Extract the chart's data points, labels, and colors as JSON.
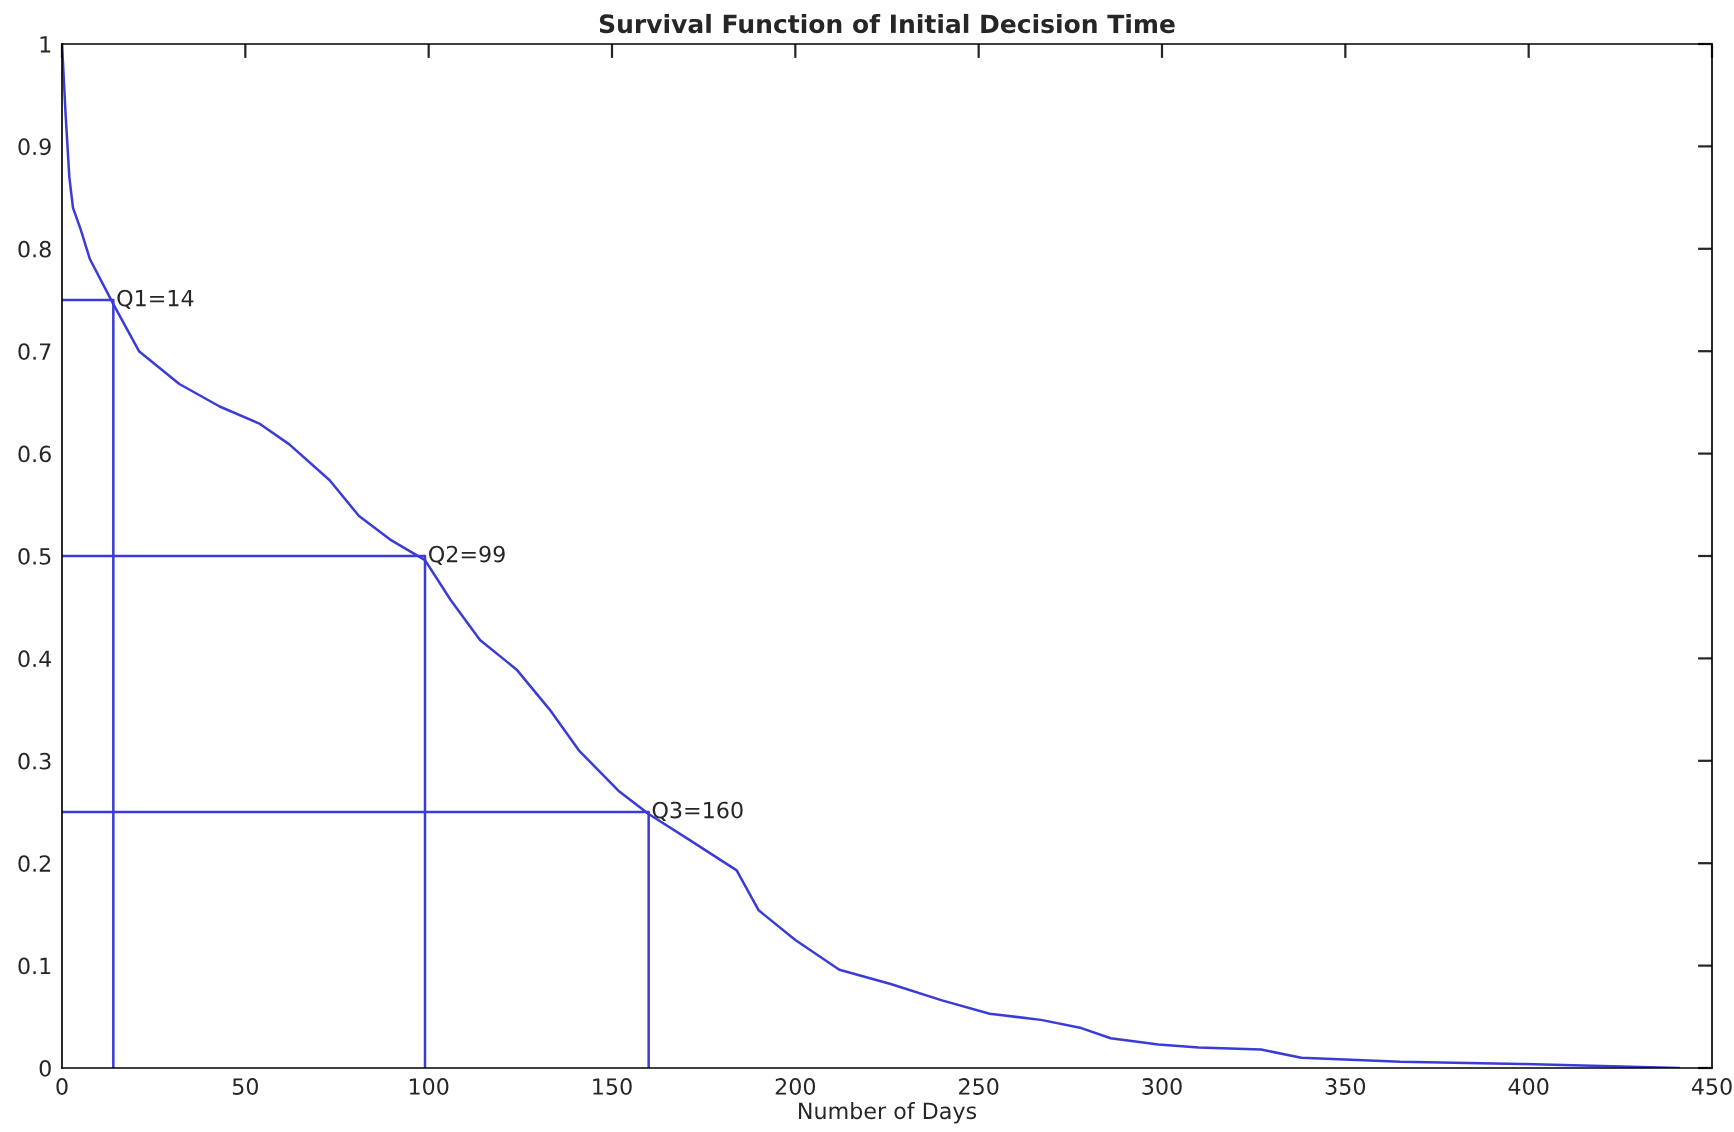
{
  "chart_data": {
    "type": "line",
    "title": "Survival Function of Initial Decision Time",
    "xlabel": "Number of Days",
    "xlim": [
      0,
      450
    ],
    "xticks": [
      0,
      50,
      100,
      150,
      200,
      250,
      300,
      350,
      400,
      450
    ],
    "ylim": [
      0,
      1
    ],
    "yticks": [
      0,
      0.1,
      0.2,
      0.3,
      0.4,
      0.5,
      0.6,
      0.7,
      0.8,
      0.9,
      1
    ],
    "grid": false,
    "marker": "none",
    "line_style": "solid",
    "series": [
      {
        "color": "#3b3bd8",
        "x": [
          0,
          1,
          2,
          3,
          5,
          7.6,
          14,
          21,
          32,
          43,
          54,
          62,
          73,
          81,
          89.5,
          99,
          106,
          114,
          124,
          133,
          141,
          152,
          160,
          171,
          184,
          190,
          200,
          212,
          226,
          240,
          253,
          267,
          278,
          286,
          299,
          310,
          327,
          338,
          365,
          398,
          420,
          441
        ],
        "values": [
          1.0,
          0.93,
          0.87,
          0.84,
          0.82,
          0.79,
          0.746,
          0.7,
          0.668,
          0.646,
          0.629,
          0.609,
          0.574,
          0.539,
          0.516,
          0.496,
          0.457,
          0.418,
          0.389,
          0.35,
          0.31,
          0.27,
          0.248,
          0.223,
          0.193,
          0.154,
          0.125,
          0.096,
          0.082,
          0.066,
          0.053,
          0.047,
          0.039,
          0.029,
          0.023,
          0.02,
          0.018,
          0.01,
          0.006,
          0.004,
          0.002,
          0
        ]
      },
      {
        "color": "#3b3bd8",
        "x": [
          0,
          14,
          14
        ],
        "values": [
          0.75,
          0.75,
          0
        ]
      },
      {
        "color": "#3b3bd8",
        "x": [
          0,
          99,
          99
        ],
        "values": [
          0.5,
          0.5,
          0
        ]
      },
      {
        "color": "#3b3bd8",
        "x": [
          0,
          160,
          160
        ],
        "values": [
          0.25,
          0.25,
          0
        ]
      }
    ],
    "annotations": [
      {
        "text": "Q1=14",
        "x": 14,
        "y": 0.75
      },
      {
        "text": "Q2=99",
        "x": 99,
        "y": 0.5
      },
      {
        "text": "Q3=160",
        "x": 160,
        "y": 0.25
      }
    ]
  }
}
